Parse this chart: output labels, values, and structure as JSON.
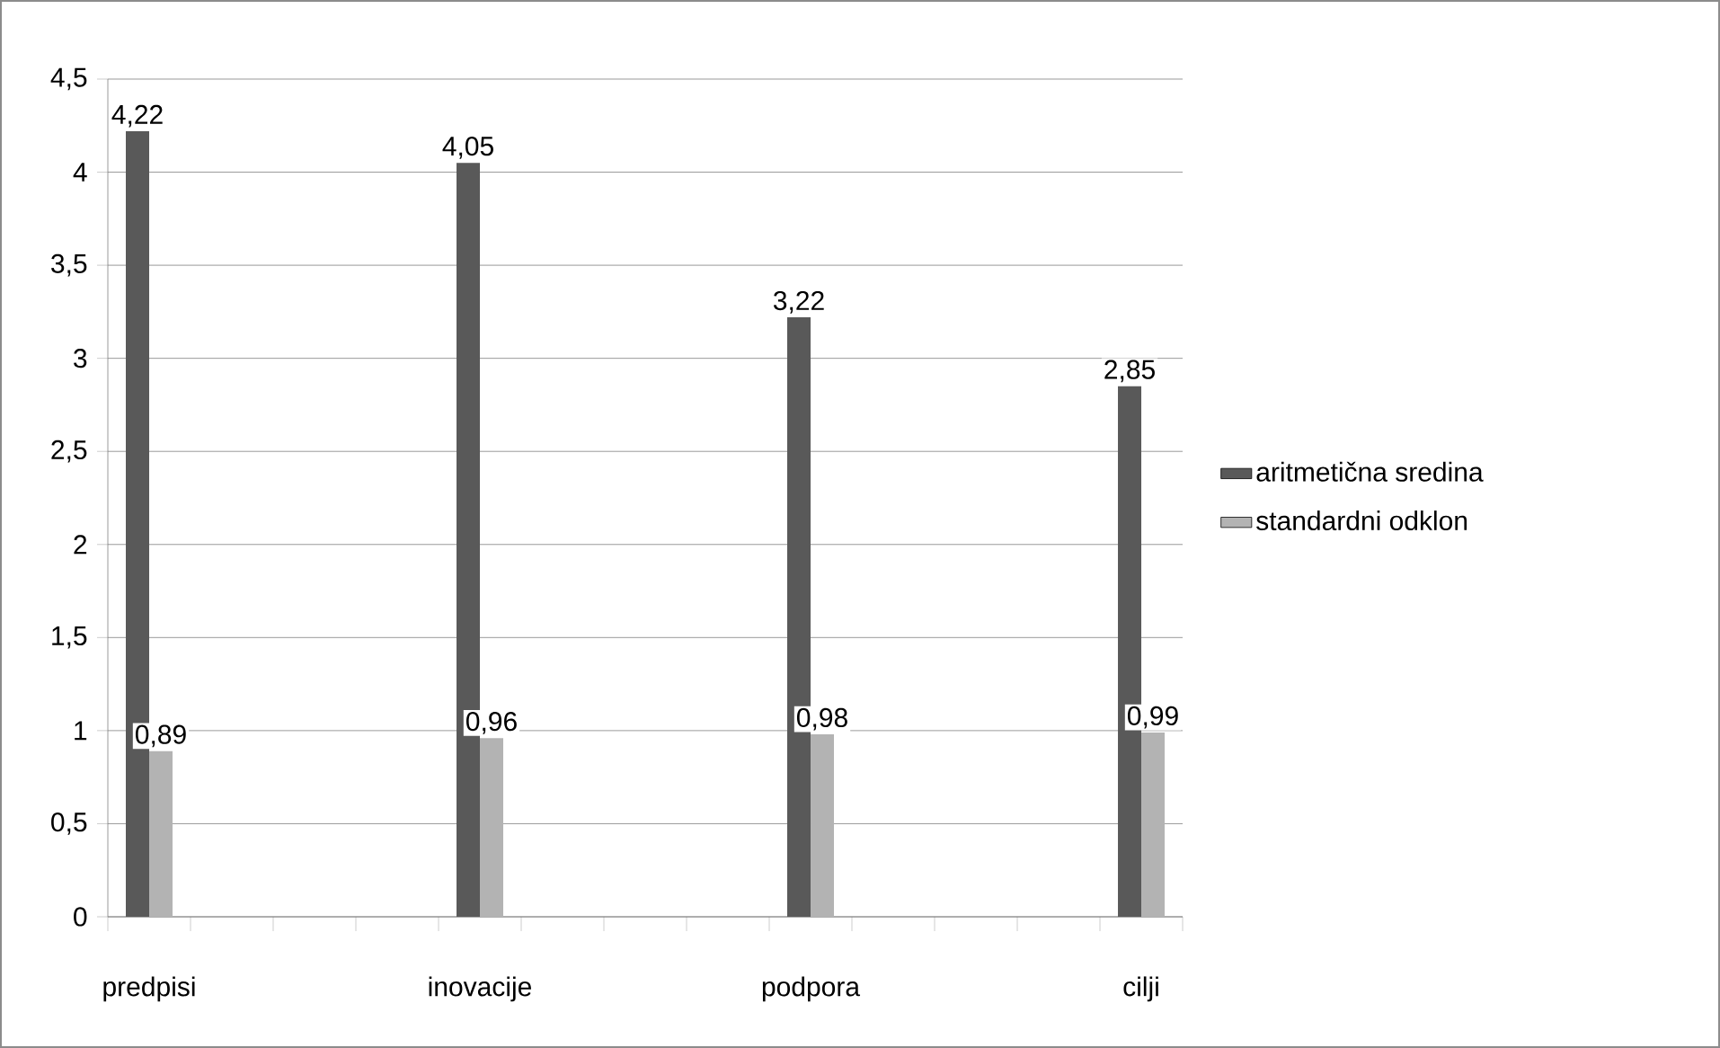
{
  "chart_data": {
    "type": "bar",
    "categories": [
      "predpisi",
      null,
      null,
      null,
      "inovacije",
      null,
      null,
      null,
      "podpora",
      null,
      null,
      null,
      "cilji"
    ],
    "series": [
      {
        "name": "aritmetična sredina",
        "color": "#595959",
        "values": [
          4.22,
          null,
          null,
          null,
          4.05,
          null,
          null,
          null,
          3.22,
          null,
          null,
          null,
          2.85
        ],
        "value_labels": [
          "4,22",
          null,
          null,
          null,
          "4,05",
          null,
          null,
          null,
          "3,22",
          null,
          null,
          null,
          "2,85"
        ]
      },
      {
        "name": "standardni odklon",
        "color": "#b3b3b3",
        "values": [
          0.89,
          null,
          null,
          null,
          0.96,
          null,
          null,
          null,
          0.98,
          null,
          null,
          null,
          0.99
        ],
        "value_labels": [
          "0,89",
          null,
          null,
          null,
          "0,96",
          null,
          null,
          null,
          "0,98",
          null,
          null,
          null,
          "0,99"
        ]
      }
    ],
    "ylim": [
      0,
      4.5
    ],
    "yticks": [
      0,
      {
        "value": 0.5,
        "label": "0,5"
      },
      1,
      {
        "value": 1.5,
        "label": "1,5"
      },
      2,
      {
        "value": 2.5,
        "label": "2,5"
      },
      3,
      {
        "value": 3.5,
        "label": "3,5"
      },
      4,
      {
        "value": 4.5,
        "label": "4,5"
      }
    ],
    "grid": "y",
    "legend": "right"
  }
}
